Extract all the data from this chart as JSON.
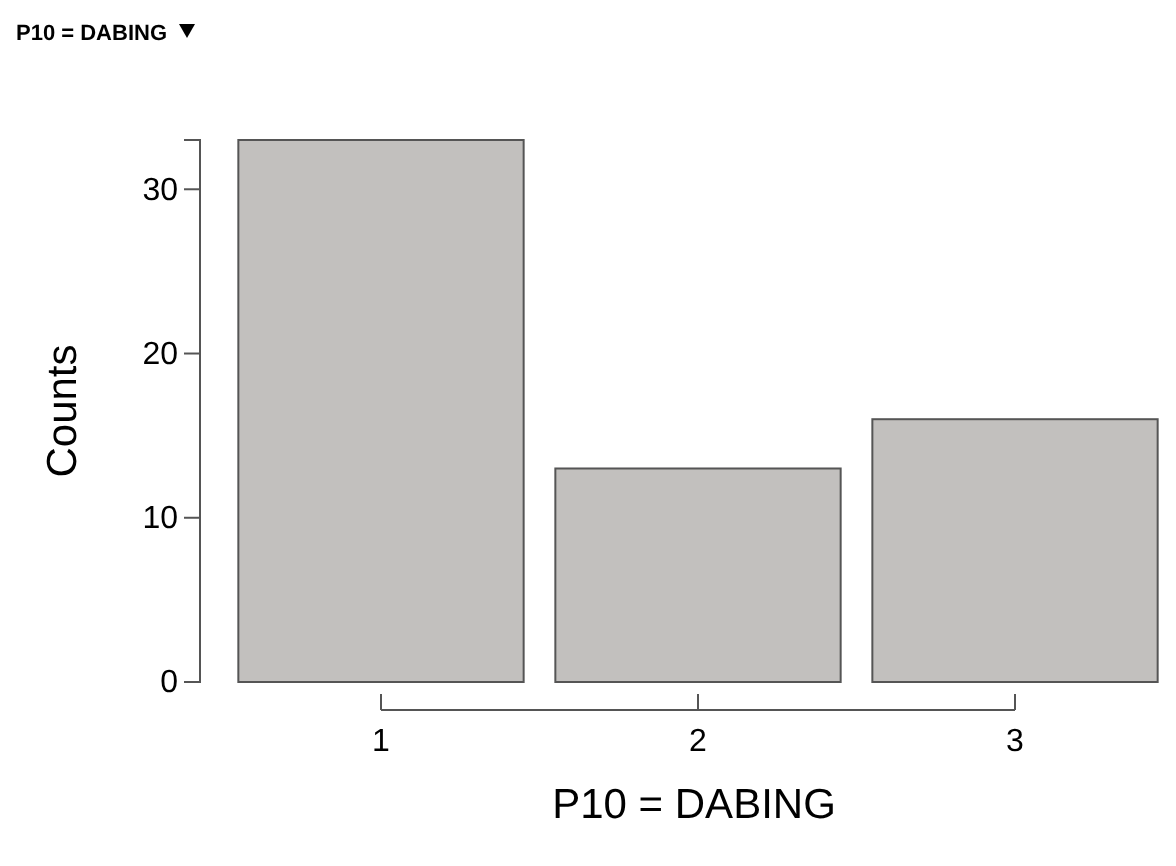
{
  "chart_data": {
    "type": "bar",
    "title": "P10 = DABING",
    "xlabel": "P10 = DABING",
    "ylabel": "Counts",
    "categories": [
      "1",
      "2",
      "3"
    ],
    "values": [
      33,
      13,
      16
    ],
    "color": "#c2c0be",
    "ylim": [
      0,
      33
    ],
    "yticks": [
      0,
      10,
      20,
      30
    ],
    "grid": false
  }
}
